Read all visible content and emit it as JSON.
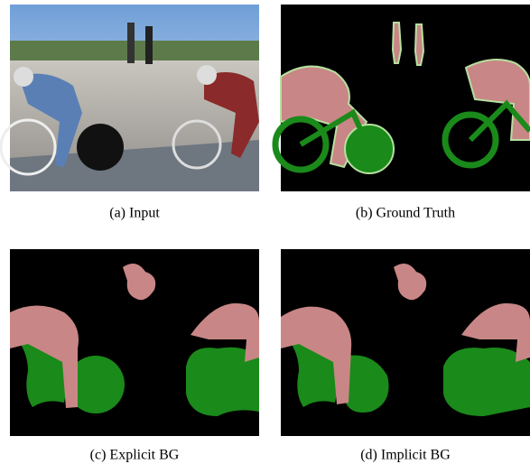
{
  "figure": {
    "panels": [
      {
        "caption": "(a) Input"
      },
      {
        "caption": "(b) Ground Truth"
      },
      {
        "caption": "(c) Explicit BG"
      },
      {
        "caption": "(d) Implicit BG"
      }
    ]
  }
}
